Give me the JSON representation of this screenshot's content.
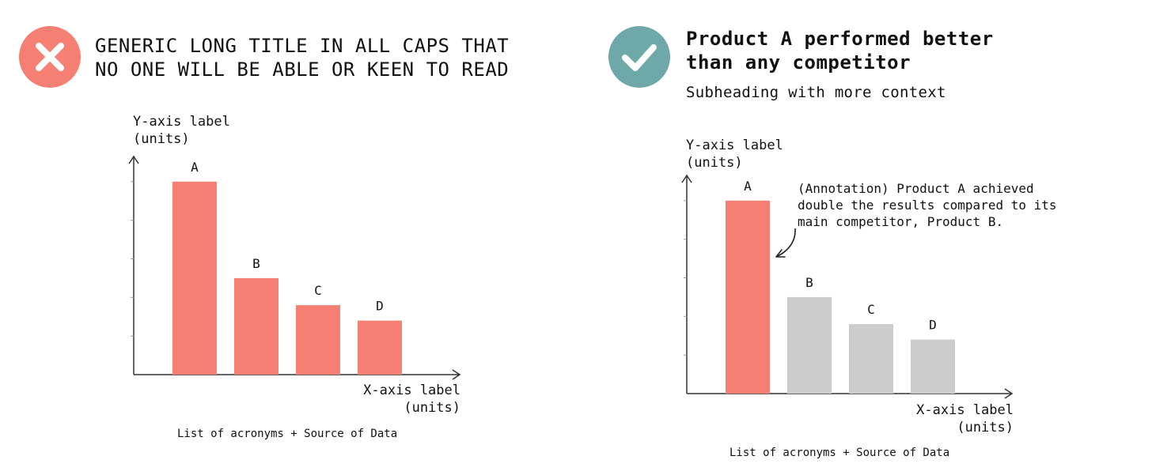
{
  "colors": {
    "bad_badge": "#F47F72",
    "good_badge": "#6FA8A8",
    "highlight_bar": "#F47F72",
    "muted_bar": "#CCCCCC",
    "axis": "#333333"
  },
  "bad": {
    "icon": "cross-icon",
    "title_line1": "GENERIC LONG TITLE IN ALL CAPS THAT",
    "title_line2": "NO ONE WILL BE ABLE OR KEEN TO READ",
    "caption": "List of acronyms + Source of Data"
  },
  "good": {
    "icon": "check-icon",
    "title_line1": "Product A performed better",
    "title_line2": "than any competitor",
    "subtitle": "Subheading with more context",
    "caption": "List of acronyms + Source of Data"
  },
  "chart_data": [
    {
      "type": "bar",
      "title": "GENERIC LONG TITLE IN ALL CAPS THAT NO ONE WILL BE ABLE OR KEEN TO READ",
      "categories": [
        "A",
        "B",
        "C",
        "D"
      ],
      "values": [
        5,
        2.5,
        1.8,
        1.4
      ],
      "ylabel_line1": "Y-axis label",
      "ylabel_line2": "(units)",
      "xlabel_line1": "X-axis label",
      "xlabel_line2": "(units)",
      "ylim": [
        0,
        6
      ],
      "ticks": [
        1,
        2,
        3,
        4,
        5
      ],
      "bar_colors": [
        "#F47F72",
        "#F47F72",
        "#F47F72",
        "#F47F72"
      ],
      "grid": false
    },
    {
      "type": "bar",
      "title": "Product A performed better than any competitor",
      "categories": [
        "A",
        "B",
        "C",
        "D"
      ],
      "values": [
        5,
        2.5,
        1.8,
        1.4
      ],
      "ylabel_line1": "Y-axis label",
      "ylabel_line2": "(units)",
      "xlabel_line1": "X-axis label",
      "xlabel_line2": "(units)",
      "ylim": [
        0,
        6
      ],
      "ticks": [
        1,
        2,
        3,
        4,
        5
      ],
      "bar_colors": [
        "#F47F72",
        "#CCCCCC",
        "#CCCCCC",
        "#CCCCCC"
      ],
      "grid": false,
      "annotation": {
        "target": "A",
        "lines": [
          "(Annotation) Product A achieved",
          "double the results compared to its",
          "main competitor, Product B."
        ]
      }
    }
  ]
}
